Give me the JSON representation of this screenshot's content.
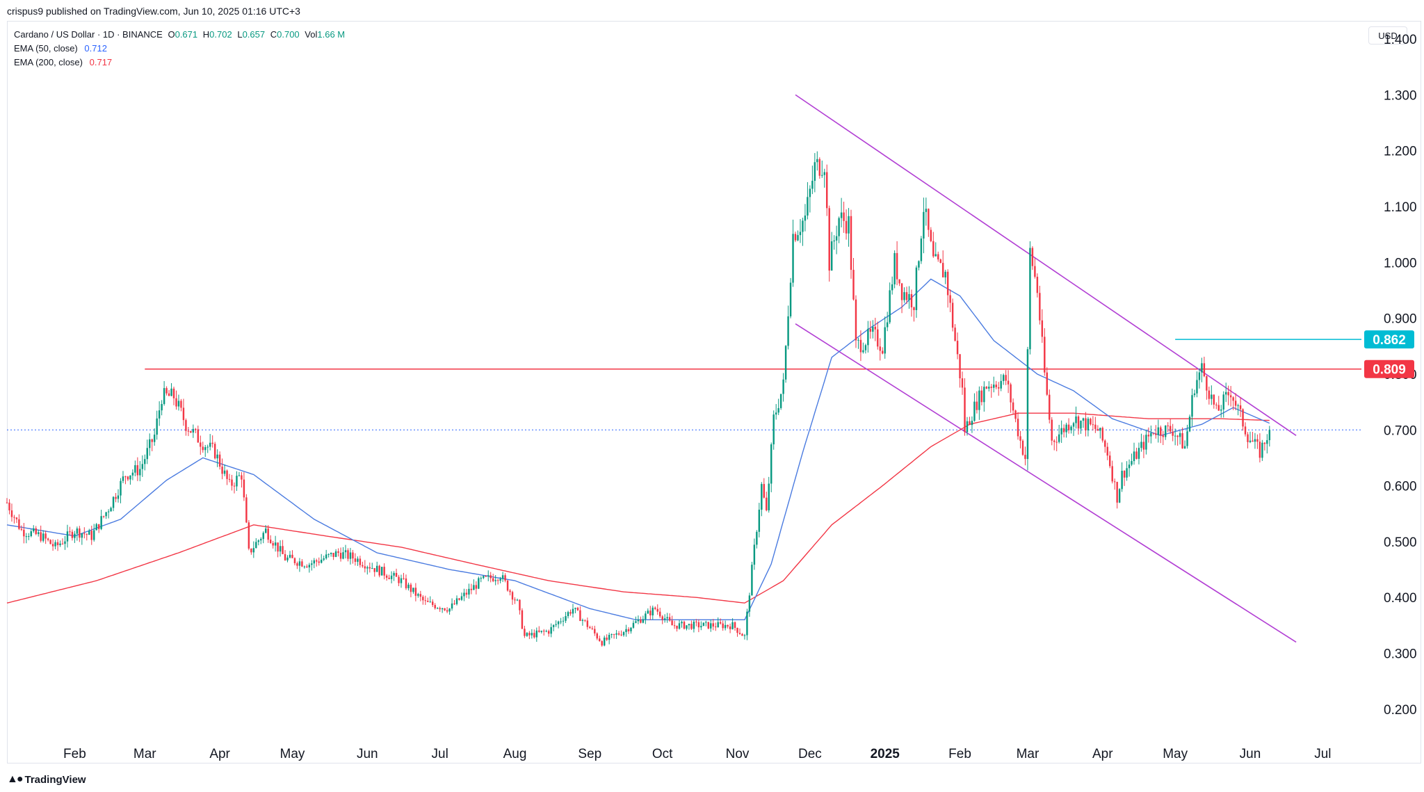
{
  "header": {
    "published": "crispus9 published on TradingView.com, Jun 10, 2025 01:16 UTC+3"
  },
  "legend": {
    "symbol": "Cardano / US Dollar · 1D · BINANCE",
    "ohlc": [
      {
        "k": "O",
        "v": "0.671"
      },
      {
        "k": "H",
        "v": "0.702"
      },
      {
        "k": "L",
        "v": "0.657"
      },
      {
        "k": "C",
        "v": "0.700"
      },
      {
        "k": "Vol",
        "v": "1.66 M"
      }
    ],
    "ema50_label": "EMA (50, close)",
    "ema50_value": "0.712",
    "ema200_label": "EMA (200, close)",
    "ema200_value": "0.717"
  },
  "currency": "USD",
  "footer": {
    "brand": "TradingView",
    "logo": "tradingview-logo-icon"
  },
  "colors": {
    "up": "#089981",
    "down": "#f23645",
    "ema50": "#4a7be0",
    "ema200": "#f23645",
    "channel": "#b23fd4",
    "resistance": "#f23645",
    "marker_0862": "#00bcd4",
    "last_price": "#2962ff"
  },
  "chart_data": {
    "type": "candlestick",
    "title": "Cardano / US Dollar · 1D · BINANCE",
    "xlabel": "",
    "ylabel": "",
    "ylim": [
      0.15,
      1.42
    ],
    "y_ticks": [
      "0.200",
      "0.300",
      "0.400",
      "0.500",
      "0.600",
      "0.700",
      "0.800",
      "0.900",
      "1.000",
      "1.100",
      "1.200",
      "1.300",
      "1.400"
    ],
    "x_ticks": [
      "Feb",
      "Mar",
      "Apr",
      "May",
      "Jun",
      "Jul",
      "Aug",
      "Sep",
      "Oct",
      "Nov",
      "Dec",
      "2025",
      "Feb",
      "Mar",
      "Apr",
      "May",
      "Jun",
      "Jul"
    ],
    "x_tick_dates": [
      "2024-02-01",
      "2024-03-01",
      "2024-04-01",
      "2024-05-01",
      "2024-06-01",
      "2024-07-01",
      "2024-08-01",
      "2024-09-01",
      "2024-10-01",
      "2024-11-01",
      "2024-12-01",
      "2025-01-01",
      "2025-02-01",
      "2025-03-01",
      "2025-04-01",
      "2025-05-01",
      "2025-06-01",
      "2025-07-01"
    ],
    "x_range": [
      "2024-01-04",
      "2025-07-17"
    ],
    "close_path": [
      [
        "2024-01-04",
        0.57
      ],
      [
        "2024-01-10",
        0.52
      ],
      [
        "2024-01-18",
        0.51
      ],
      [
        "2024-01-24",
        0.49
      ],
      [
        "2024-02-01",
        0.52
      ],
      [
        "2024-02-08",
        0.51
      ],
      [
        "2024-02-15",
        0.56
      ],
      [
        "2024-02-22",
        0.62
      ],
      [
        "2024-02-28",
        0.63
      ],
      [
        "2024-03-05",
        0.69
      ],
      [
        "2024-03-08",
        0.76
      ],
      [
        "2024-03-13",
        0.76
      ],
      [
        "2024-03-18",
        0.71
      ],
      [
        "2024-03-24",
        0.68
      ],
      [
        "2024-03-30",
        0.66
      ],
      [
        "2024-04-05",
        0.6
      ],
      [
        "2024-04-10",
        0.62
      ],
      [
        "2024-04-13",
        0.48
      ],
      [
        "2024-04-20",
        0.52
      ],
      [
        "2024-04-28",
        0.47
      ],
      [
        "2024-05-08",
        0.46
      ],
      [
        "2024-05-20",
        0.48
      ],
      [
        "2024-05-27",
        0.47
      ],
      [
        "2024-06-05",
        0.45
      ],
      [
        "2024-06-15",
        0.43
      ],
      [
        "2024-06-25",
        0.39
      ],
      [
        "2024-07-05",
        0.38
      ],
      [
        "2024-07-10",
        0.4
      ],
      [
        "2024-07-18",
        0.43
      ],
      [
        "2024-07-26",
        0.44
      ],
      [
        "2024-08-02",
        0.39
      ],
      [
        "2024-08-05",
        0.33
      ],
      [
        "2024-08-15",
        0.34
      ],
      [
        "2024-08-25",
        0.38
      ],
      [
        "2024-09-06",
        0.32
      ],
      [
        "2024-09-15",
        0.34
      ],
      [
        "2024-09-28",
        0.38
      ],
      [
        "2024-10-05",
        0.35
      ],
      [
        "2024-10-20",
        0.35
      ],
      [
        "2024-10-30",
        0.35
      ],
      [
        "2024-11-04",
        0.33
      ],
      [
        "2024-11-07",
        0.45
      ],
      [
        "2024-11-11",
        0.6
      ],
      [
        "2024-11-13",
        0.55
      ],
      [
        "2024-11-16",
        0.72
      ],
      [
        "2024-11-20",
        0.78
      ],
      [
        "2024-11-24",
        1.05
      ],
      [
        "2024-11-29",
        1.08
      ],
      [
        "2024-12-03",
        1.17
      ],
      [
        "2024-12-07",
        1.18
      ],
      [
        "2024-12-09",
        1.0
      ],
      [
        "2024-12-13",
        1.08
      ],
      [
        "2024-12-17",
        1.07
      ],
      [
        "2024-12-20",
        0.85
      ],
      [
        "2024-12-27",
        0.87
      ],
      [
        "2024-12-31",
        0.85
      ],
      [
        "2025-01-05",
        1.0
      ],
      [
        "2025-01-08",
        0.95
      ],
      [
        "2025-01-13",
        0.93
      ],
      [
        "2025-01-17",
        1.1
      ],
      [
        "2025-01-21",
        1.0
      ],
      [
        "2025-01-26",
        0.98
      ],
      [
        "2025-02-02",
        0.77
      ],
      [
        "2025-02-03",
        0.7
      ],
      [
        "2025-02-08",
        0.75
      ],
      [
        "2025-02-12",
        0.78
      ],
      [
        "2025-02-20",
        0.79
      ],
      [
        "2025-02-26",
        0.68
      ],
      [
        "2025-02-28",
        0.65
      ],
      [
        "2025-03-02",
        1.02
      ],
      [
        "2025-03-05",
        0.95
      ],
      [
        "2025-03-08",
        0.8
      ],
      [
        "2025-03-11",
        0.68
      ],
      [
        "2025-03-20",
        0.72
      ],
      [
        "2025-03-30",
        0.7
      ],
      [
        "2025-04-03",
        0.66
      ],
      [
        "2025-04-07",
        0.58
      ],
      [
        "2025-04-09",
        0.62
      ],
      [
        "2025-04-14",
        0.65
      ],
      [
        "2025-04-22",
        0.7
      ],
      [
        "2025-04-30",
        0.7
      ],
      [
        "2025-05-05",
        0.67
      ],
      [
        "2025-05-09",
        0.78
      ],
      [
        "2025-05-12",
        0.81
      ],
      [
        "2025-05-18",
        0.73
      ],
      [
        "2025-05-24",
        0.77
      ],
      [
        "2025-05-31",
        0.69
      ],
      [
        "2025-06-05",
        0.66
      ],
      [
        "2025-06-09",
        0.7
      ]
    ],
    "ema50_path": [
      [
        "2024-01-04",
        0.53
      ],
      [
        "2024-02-01",
        0.51
      ],
      [
        "2024-02-20",
        0.54
      ],
      [
        "2024-03-10",
        0.61
      ],
      [
        "2024-03-25",
        0.65
      ],
      [
        "2024-04-15",
        0.62
      ],
      [
        "2024-05-10",
        0.54
      ],
      [
        "2024-06-05",
        0.48
      ],
      [
        "2024-07-05",
        0.45
      ],
      [
        "2024-08-01",
        0.43
      ],
      [
        "2024-09-01",
        0.38
      ],
      [
        "2024-09-20",
        0.36
      ],
      [
        "2024-10-15",
        0.36
      ],
      [
        "2024-11-04",
        0.36
      ],
      [
        "2024-11-15",
        0.46
      ],
      [
        "2024-11-28",
        0.66
      ],
      [
        "2024-12-10",
        0.83
      ],
      [
        "2024-12-25",
        0.88
      ],
      [
        "2025-01-08",
        0.92
      ],
      [
        "2025-01-20",
        0.97
      ],
      [
        "2025-02-01",
        0.94
      ],
      [
        "2025-02-15",
        0.86
      ],
      [
        "2025-03-05",
        0.8
      ],
      [
        "2025-03-20",
        0.77
      ],
      [
        "2025-04-05",
        0.72
      ],
      [
        "2025-04-25",
        0.69
      ],
      [
        "2025-05-12",
        0.71
      ],
      [
        "2025-05-25",
        0.74
      ],
      [
        "2025-06-09",
        0.712
      ]
    ],
    "ema200_path": [
      [
        "2024-01-04",
        0.39
      ],
      [
        "2024-02-10",
        0.43
      ],
      [
        "2024-03-15",
        0.48
      ],
      [
        "2024-04-15",
        0.53
      ],
      [
        "2024-05-15",
        0.51
      ],
      [
        "2024-06-15",
        0.49
      ],
      [
        "2024-07-15",
        0.46
      ],
      [
        "2024-08-15",
        0.43
      ],
      [
        "2024-09-15",
        0.41
      ],
      [
        "2024-10-15",
        0.4
      ],
      [
        "2024-11-04",
        0.39
      ],
      [
        "2024-11-20",
        0.43
      ],
      [
        "2024-12-10",
        0.53
      ],
      [
        "2024-12-31",
        0.6
      ],
      [
        "2025-01-20",
        0.67
      ],
      [
        "2025-02-05",
        0.71
      ],
      [
        "2025-02-25",
        0.73
      ],
      [
        "2025-03-20",
        0.73
      ],
      [
        "2025-04-20",
        0.72
      ],
      [
        "2025-05-20",
        0.72
      ],
      [
        "2025-06-09",
        0.717
      ]
    ],
    "annotations": {
      "channel_upper": [
        [
          "2024-11-25",
          1.3
        ],
        [
          "2025-06-20",
          0.69
        ]
      ],
      "channel_lower": [
        [
          "2024-11-25",
          0.89
        ],
        [
          "2025-06-20",
          0.32
        ]
      ],
      "horizontal_0809": {
        "value": 0.809,
        "from": "2024-03-01",
        "label": "0.809"
      },
      "horizontal_0862": {
        "value": 0.862,
        "from": "2025-05-01",
        "label": "0.862"
      },
      "last_price": {
        "value": 0.7,
        "label": "0.700"
      }
    }
  }
}
